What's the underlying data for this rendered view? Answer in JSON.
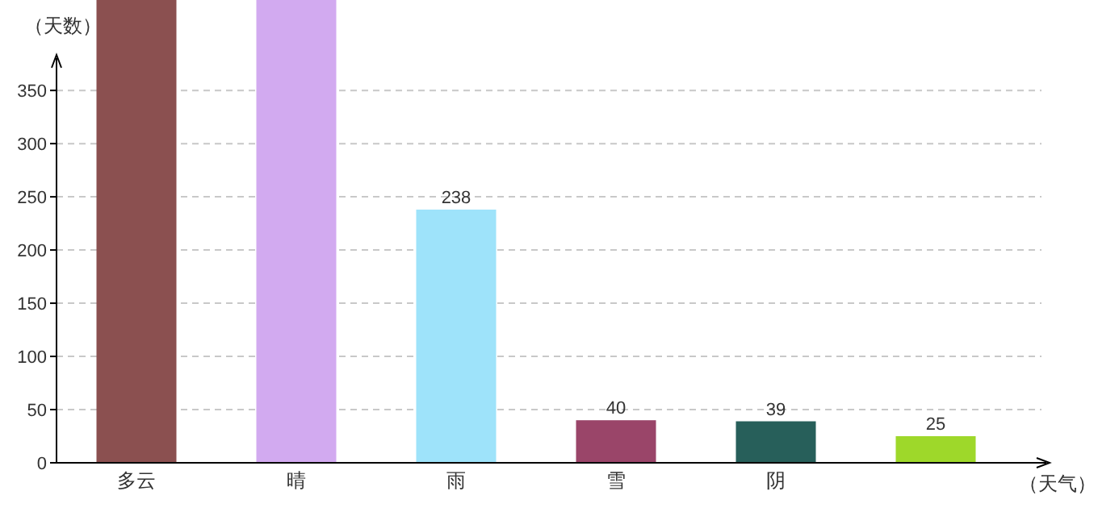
{
  "chart_data": {
    "type": "bar",
    "ylabel": "（天数）",
    "xlabel": "（天气）",
    "categories": [
      "多云",
      "晴",
      "雨",
      "雪",
      "阴",
      null
    ],
    "values": [
      435,
      435,
      238,
      40,
      39,
      25
    ],
    "value_labels": [
      null,
      null,
      "238",
      "40",
      "39",
      "25"
    ],
    "colors": [
      "#8b5050",
      "#d2aaf0",
      "#9ee3fa",
      "#9a4569",
      "#275f5a",
      "#9ed82a"
    ],
    "ylim": [
      0,
      435
    ],
    "yticks": [
      0,
      50,
      100,
      150,
      200,
      250,
      300,
      350
    ],
    "grid": "y"
  }
}
